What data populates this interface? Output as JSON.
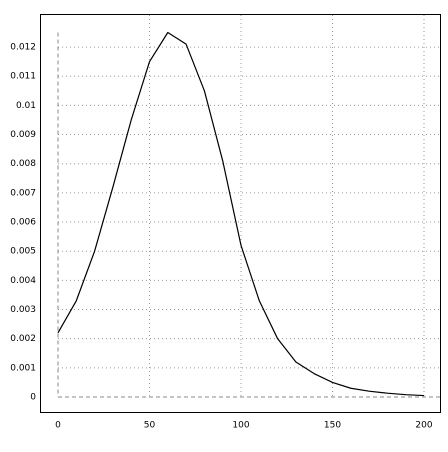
{
  "chart_data": {
    "type": "line",
    "x": [
      0,
      10,
      20,
      30,
      40,
      50,
      60,
      70,
      80,
      90,
      100,
      110,
      120,
      130,
      140,
      150,
      160,
      170,
      180,
      190,
      200
    ],
    "series": [
      {
        "color": "#000000",
        "values": [
          0.0022,
          0.0033,
          0.005,
          0.0072,
          0.0095,
          0.0115,
          0.0125,
          0.0121,
          0.0105,
          0.0081,
          0.0052,
          0.0033,
          0.002,
          0.0012,
          0.0008,
          0.0005,
          0.0003,
          0.0002,
          0.00013,
          8e-05,
          5e-05
        ]
      }
    ],
    "xlim": [
      0,
      200
    ],
    "xticks": [
      0,
      50,
      100,
      150,
      200
    ],
    "ylim": [
      0,
      0.0125
    ],
    "yticks": [
      0,
      0.001,
      0.002,
      0.003,
      0.004,
      0.005,
      0.006,
      0.007,
      0.008,
      0.009,
      0.01,
      0.011,
      0.012
    ],
    "grid": true
  }
}
